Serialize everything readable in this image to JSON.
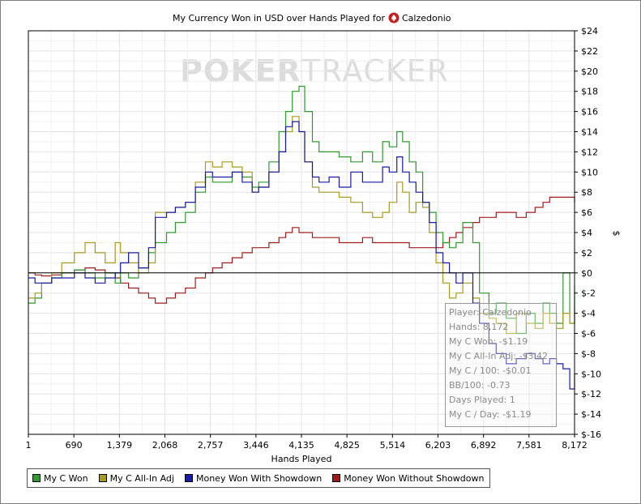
{
  "watermark": {
    "part1": "POKER",
    "part2": "TRACKER"
  },
  "chart_data": {
    "type": "line",
    "title": "My Currency Won in USD over Hands Played for",
    "player": "Calzedonio",
    "xlabel": "Hands Played",
    "ylabel": "$",
    "x_ticks": [
      "1",
      "690",
      "1,379",
      "2,068",
      "2,757",
      "3,446",
      "4,135",
      "4,825",
      "5,514",
      "6,203",
      "6,892",
      "7,581",
      "8,172"
    ],
    "y_ticks": [
      "$24",
      "$22",
      "$20",
      "$18",
      "$16",
      "$14",
      "$12",
      "$10",
      "$8",
      "$6",
      "$4",
      "$2",
      "$0",
      "$-2",
      "$-4",
      "$-6",
      "$-8",
      "$-10",
      "$-12",
      "$-14",
      "$-16"
    ],
    "xlim": [
      1,
      8172
    ],
    "ylim": [
      -16,
      24
    ],
    "grid": true,
    "legend_position": "bottom-left",
    "series": [
      {
        "name": "My C Won",
        "color": "#2e9b2e",
        "x": [
          1,
          100,
          200,
          350,
          500,
          690,
          850,
          1000,
          1150,
          1300,
          1379,
          1500,
          1650,
          1800,
          1900,
          2068,
          2200,
          2350,
          2500,
          2650,
          2757,
          2900,
          3050,
          3200,
          3350,
          3446,
          3600,
          3750,
          3850,
          3950,
          4050,
          4135,
          4250,
          4350,
          4500,
          4650,
          4825,
          5000,
          5150,
          5300,
          5400,
          5514,
          5600,
          5700,
          5800,
          5900,
          6000,
          6100,
          6203,
          6300,
          6400,
          6500,
          6650,
          6750,
          6892,
          7000,
          7150,
          7300,
          7450,
          7581,
          7700,
          7800,
          7900,
          8000,
          8100,
          8172
        ],
        "y": [
          -3,
          -2.5,
          -1,
          -0.5,
          0,
          0.3,
          0,
          -0.5,
          0,
          -1,
          0,
          -0.5,
          0.5,
          2,
          3,
          4,
          5,
          6,
          8,
          9.5,
          9,
          9,
          10,
          9.5,
          8.5,
          9,
          11,
          14,
          16,
          18,
          18.5,
          16,
          13,
          12,
          12,
          11.5,
          11,
          12,
          11,
          13,
          12.5,
          14,
          13,
          11,
          10,
          7,
          6,
          4,
          3,
          2.5,
          3,
          5,
          3,
          -2,
          -4,
          -3,
          -4.5,
          -6,
          -4,
          -5,
          -3,
          -4,
          -5,
          0,
          -5,
          -1.19
        ]
      },
      {
        "name": "My C All-In Adj",
        "color": "#a89b1f",
        "x": [
          1,
          100,
          200,
          350,
          500,
          690,
          850,
          1000,
          1150,
          1300,
          1379,
          1500,
          1650,
          1800,
          1900,
          2068,
          2200,
          2350,
          2500,
          2650,
          2757,
          2900,
          3050,
          3200,
          3350,
          3446,
          3600,
          3750,
          3850,
          3950,
          4050,
          4135,
          4250,
          4350,
          4500,
          4650,
          4825,
          5000,
          5150,
          5300,
          5400,
          5514,
          5600,
          5700,
          5800,
          5900,
          6000,
          6100,
          6203,
          6300,
          6400,
          6500,
          6650,
          6750,
          6892,
          7000,
          7150,
          7300,
          7450,
          7581,
          7700,
          7800,
          7900,
          8000,
          8100,
          8172
        ],
        "y": [
          -2.5,
          -2,
          -1,
          0,
          1,
          2,
          3,
          2,
          1,
          3,
          2,
          1,
          0,
          1,
          6,
          6,
          6.5,
          7,
          9,
          11,
          10.5,
          11,
          10.5,
          10,
          8,
          8.5,
          10,
          12,
          14,
          15.5,
          14,
          11,
          8.5,
          8,
          8,
          7.5,
          7,
          6,
          5.5,
          6,
          7,
          9,
          8,
          6,
          7,
          6.5,
          4,
          1,
          -1,
          -2.5,
          -2,
          -1,
          -2.5,
          -4,
          -4.5,
          -5,
          -6,
          -4,
          -5,
          -5.5,
          -4,
          -5,
          -5.5,
          -4,
          -5,
          -3.42
        ]
      },
      {
        "name": "Money Won With Showdown",
        "color": "#1a1aa8",
        "x": [
          1,
          100,
          200,
          350,
          500,
          690,
          850,
          1000,
          1150,
          1300,
          1379,
          1500,
          1650,
          1800,
          1900,
          2068,
          2200,
          2350,
          2500,
          2650,
          2757,
          2900,
          3050,
          3200,
          3350,
          3446,
          3600,
          3750,
          3850,
          3950,
          4050,
          4135,
          4250,
          4350,
          4500,
          4650,
          4825,
          5000,
          5150,
          5300,
          5400,
          5514,
          5600,
          5700,
          5800,
          5900,
          6000,
          6100,
          6203,
          6300,
          6400,
          6500,
          6650,
          6750,
          6892,
          7000,
          7150,
          7300,
          7450,
          7581,
          7700,
          7800,
          7900,
          8000,
          8100,
          8172
        ],
        "y": [
          -0.5,
          -1,
          -1,
          -0.5,
          -0.5,
          0,
          -0.5,
          -1,
          -0.5,
          0,
          1,
          2,
          0.5,
          2.5,
          5.5,
          6,
          6.5,
          7,
          8.5,
          10,
          9.5,
          9.5,
          10,
          9,
          8,
          8.5,
          10,
          12,
          14.5,
          15,
          14,
          11,
          9.5,
          9,
          9.5,
          8.5,
          10,
          9,
          9,
          10.5,
          10,
          11.5,
          10,
          9,
          8,
          7,
          5,
          2,
          1,
          0,
          -1,
          0,
          -3,
          -5,
          -7,
          -8,
          -9,
          -8.5,
          -8,
          -8.5,
          -9,
          -8.5,
          -9,
          -9.5,
          -11.5,
          -10
        ]
      },
      {
        "name": "Money Won Without Showdown",
        "color": "#a01c1c",
        "x": [
          1,
          100,
          200,
          350,
          500,
          690,
          850,
          1000,
          1150,
          1300,
          1379,
          1500,
          1650,
          1800,
          1900,
          2068,
          2200,
          2350,
          2500,
          2650,
          2757,
          2900,
          3050,
          3200,
          3350,
          3446,
          3600,
          3750,
          3850,
          3950,
          4050,
          4135,
          4250,
          4350,
          4500,
          4650,
          4825,
          5000,
          5150,
          5300,
          5400,
          5514,
          5600,
          5700,
          5800,
          5900,
          6000,
          6100,
          6203,
          6300,
          6400,
          6500,
          6650,
          6750,
          6892,
          7000,
          7150,
          7300,
          7450,
          7581,
          7700,
          7800,
          7900,
          8000,
          8100,
          8172
        ],
        "y": [
          0,
          -0.2,
          -0.3,
          -0.2,
          0,
          0.3,
          0.5,
          0.3,
          0,
          -0.5,
          -1,
          -1.5,
          -2,
          -2.5,
          -3,
          -2.5,
          -2,
          -1.5,
          -0.5,
          0,
          0.5,
          1,
          1.5,
          2,
          2.5,
          2.5,
          3,
          3.5,
          4,
          4.5,
          4,
          4,
          3.5,
          3.5,
          3.5,
          3,
          3,
          3.5,
          3,
          3,
          3,
          3,
          3,
          2.5,
          2.5,
          2.5,
          2.5,
          2.5,
          3,
          3.5,
          4,
          4.5,
          5,
          5.5,
          5.5,
          6,
          6,
          5.5,
          6,
          6.5,
          7,
          7.5,
          7.5,
          7.5,
          7.5,
          7
        ]
      }
    ]
  },
  "tooltip": {
    "player": "Player: Calzedonio",
    "hands": "Hands: 8,172",
    "won": "My C Won: -$1.19",
    "allin": "My C All-In Adj: -$3.42",
    "per100": "My C / 100: -$0.01",
    "bb100": "BB/100: -0.73",
    "days": "Days Played: 1",
    "perday": "My C / Day: -$1.19"
  }
}
